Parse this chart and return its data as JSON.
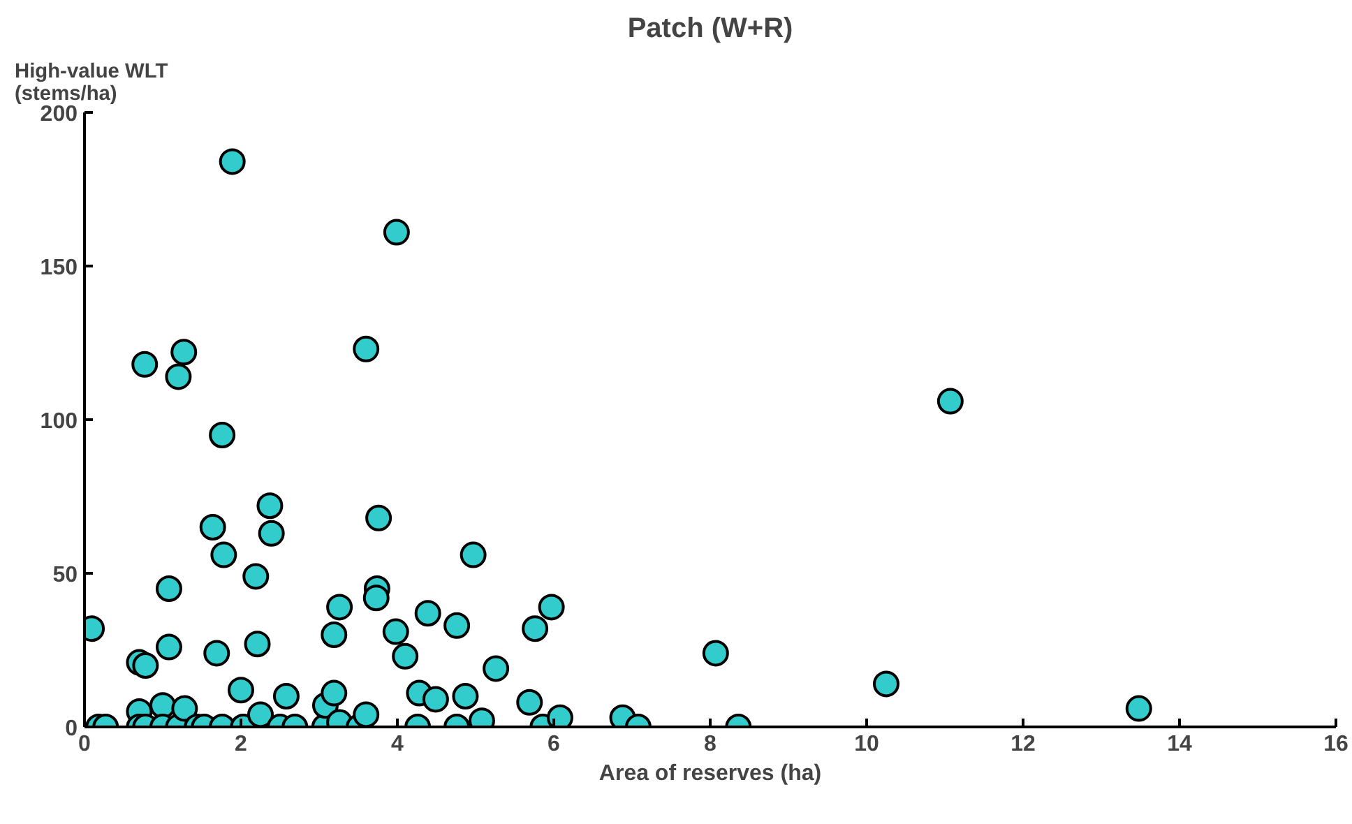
{
  "chart_data": {
    "type": "scatter",
    "title": "Patch (W+R)",
    "xlabel": "Area of reserves (ha)",
    "ylabel": "High-value WLT\n(stems/ha)",
    "x": [
      0.09,
      0.18,
      0.27,
      0.7,
      0.78,
      0.77,
      0.7,
      0.7,
      0.78,
      1.0,
      1.0,
      1.08,
      1.08,
      1.2,
      1.27,
      1.2,
      1.28,
      1.44,
      1.53,
      1.64,
      1.69,
      1.76,
      1.78,
      1.76,
      1.89,
      2.0,
      2.03,
      2.19,
      2.21,
      2.25,
      2.37,
      2.39,
      2.5,
      2.58,
      2.69,
      3.07,
      3.08,
      3.19,
      3.19,
      3.26,
      3.26,
      3.51,
      3.6,
      3.6,
      3.74,
      3.76,
      3.73,
      3.98,
      3.99,
      4.1,
      4.26,
      4.28,
      4.39,
      4.49,
      4.76,
      4.76,
      4.87,
      4.97,
      5.08,
      5.26,
      5.69,
      5.76,
      5.86,
      5.97,
      6.08,
      6.88,
      7.08,
      8.07,
      8.36,
      10.25,
      11.07,
      13.48
    ],
    "series": [
      {
        "color": "#33cccc",
        "values": [
          32,
          0,
          0,
          21,
          20,
          118,
          5,
          0,
          0,
          7,
          0,
          45,
          26,
          114,
          122,
          0,
          6,
          0,
          0,
          65,
          24,
          95,
          56,
          0,
          184,
          12,
          0,
          49,
          27,
          4,
          72,
          63,
          0,
          10,
          0,
          0,
          7,
          30,
          11,
          39,
          1.5,
          0,
          4,
          123,
          45,
          68,
          42,
          31,
          161,
          23,
          0,
          11,
          37,
          9,
          33,
          0,
          10,
          56,
          2,
          19,
          8,
          32,
          0,
          39,
          3,
          3,
          0,
          24,
          0,
          14,
          106,
          6
        ]
      }
    ],
    "xlim": [
      0,
      16
    ],
    "ylim": [
      0,
      200
    ],
    "xticks": [
      0,
      2,
      4,
      6,
      8,
      10,
      12,
      14,
      16
    ],
    "yticks": [
      0,
      50,
      100,
      150,
      200
    ],
    "marker": "circle",
    "grid": false
  }
}
